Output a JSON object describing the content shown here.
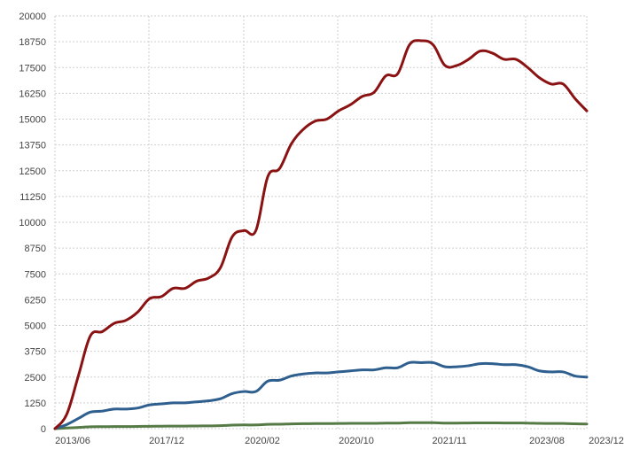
{
  "chart_data": {
    "type": "line",
    "title": "",
    "xlabel": "",
    "ylabel": "",
    "ylim": [
      0,
      20000
    ],
    "grid": true,
    "legend": "none",
    "y_ticks": [
      "0",
      "1250",
      "2500",
      "3750",
      "5000",
      "6250",
      "7500",
      "8750",
      "10000",
      "11250",
      "12500",
      "13750",
      "15000",
      "16250",
      "17500",
      "18750",
      "20000"
    ],
    "x_ticks": [
      "2013/06",
      "2017/12",
      "2020/02",
      "2020/10",
      "2021/11",
      "2023/08",
      "2023/12"
    ],
    "series": [
      {
        "color": "#8b1212",
        "values": [
          0,
          700,
          2600,
          4500,
          4700,
          5100,
          5250,
          5650,
          6300,
          6400,
          6800,
          6800,
          7150,
          7300,
          7800,
          9300,
          9600,
          9600,
          12200,
          12600,
          13800,
          14500,
          14900,
          15000,
          15400,
          15700,
          16100,
          16300,
          17100,
          17200,
          18600,
          18800,
          18600,
          17600,
          17600,
          17900,
          18300,
          18200,
          17900,
          17900,
          17500,
          17000,
          16700,
          16700,
          16000,
          15400
        ]
      },
      {
        "color": "#2e5f8e",
        "values": [
          0,
          200,
          500,
          800,
          850,
          950,
          950,
          1000,
          1150,
          1200,
          1250,
          1250,
          1300,
          1350,
          1450,
          1700,
          1800,
          1800,
          2300,
          2350,
          2550,
          2650,
          2700,
          2700,
          2750,
          2800,
          2850,
          2850,
          2950,
          2950,
          3200,
          3200,
          3200,
          3000,
          3000,
          3050,
          3150,
          3150,
          3100,
          3100,
          3000,
          2800,
          2750,
          2750,
          2550,
          2500
        ]
      },
      {
        "color": "#557a46",
        "values": [
          0,
          30,
          60,
          90,
          95,
          100,
          100,
          105,
          115,
          120,
          125,
          125,
          130,
          135,
          145,
          170,
          180,
          180,
          210,
          215,
          230,
          240,
          245,
          245,
          250,
          255,
          260,
          260,
          270,
          270,
          290,
          290,
          290,
          270,
          270,
          275,
          280,
          280,
          275,
          275,
          270,
          255,
          250,
          250,
          235,
          225
        ]
      }
    ]
  }
}
